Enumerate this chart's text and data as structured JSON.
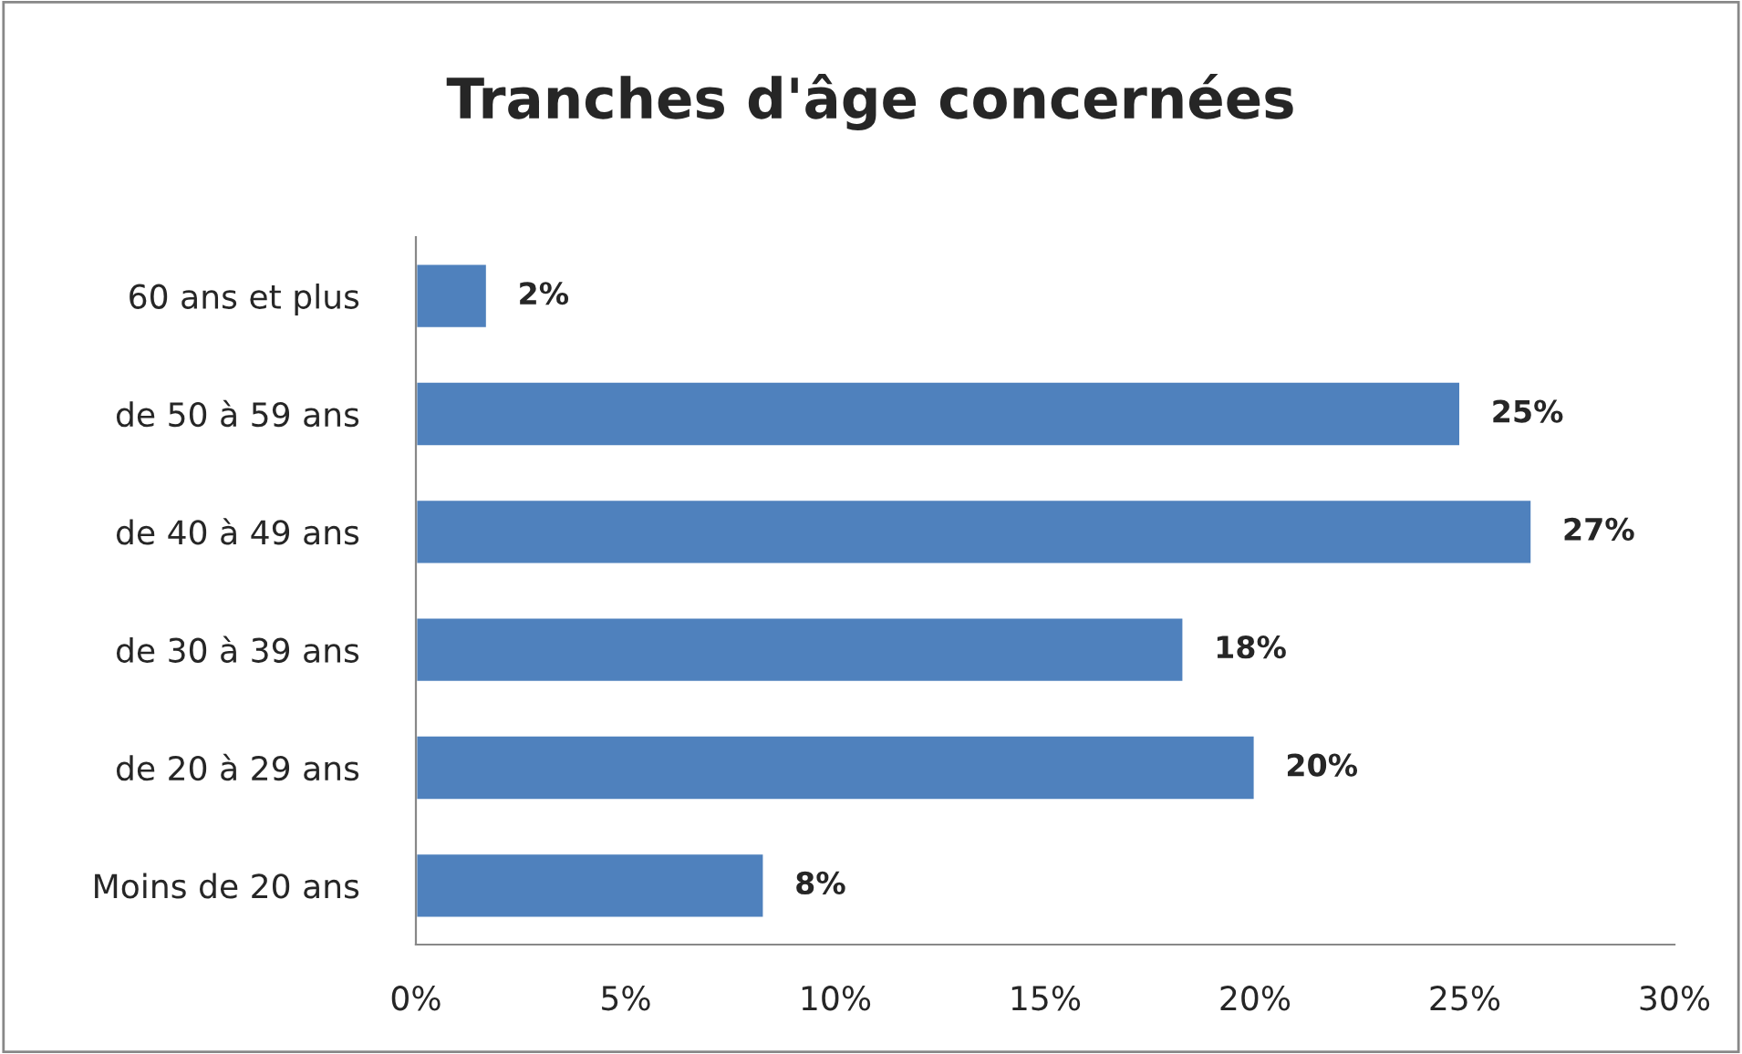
{
  "chart_data": {
    "type": "bar",
    "orientation": "horizontal",
    "title": "Tranches d'âge concernées",
    "categories": [
      "60 ans et plus",
      "de 50 à 59 ans",
      "de 40 à 49 ans",
      "de 30 à 39 ans",
      "de 20 à 29 ans",
      "Moins de 20 ans"
    ],
    "values": [
      1.7,
      24.9,
      26.6,
      18.3,
      20.0,
      8.3
    ],
    "value_labels": [
      "2%",
      "25%",
      "27%",
      "18%",
      "20%",
      "8%"
    ],
    "color": "#4f81bd",
    "xlim": [
      0,
      30
    ],
    "xticks": [
      {
        "value": 0,
        "label": "0%"
      },
      {
        "value": 5,
        "label": "5%"
      },
      {
        "value": 10,
        "label": "10%"
      },
      {
        "value": 15,
        "label": "15%"
      },
      {
        "value": 20,
        "label": "20%"
      },
      {
        "value": 25,
        "label": "25%"
      },
      {
        "value": 30,
        "label": "30%"
      }
    ],
    "grid": false,
    "legend": false
  }
}
